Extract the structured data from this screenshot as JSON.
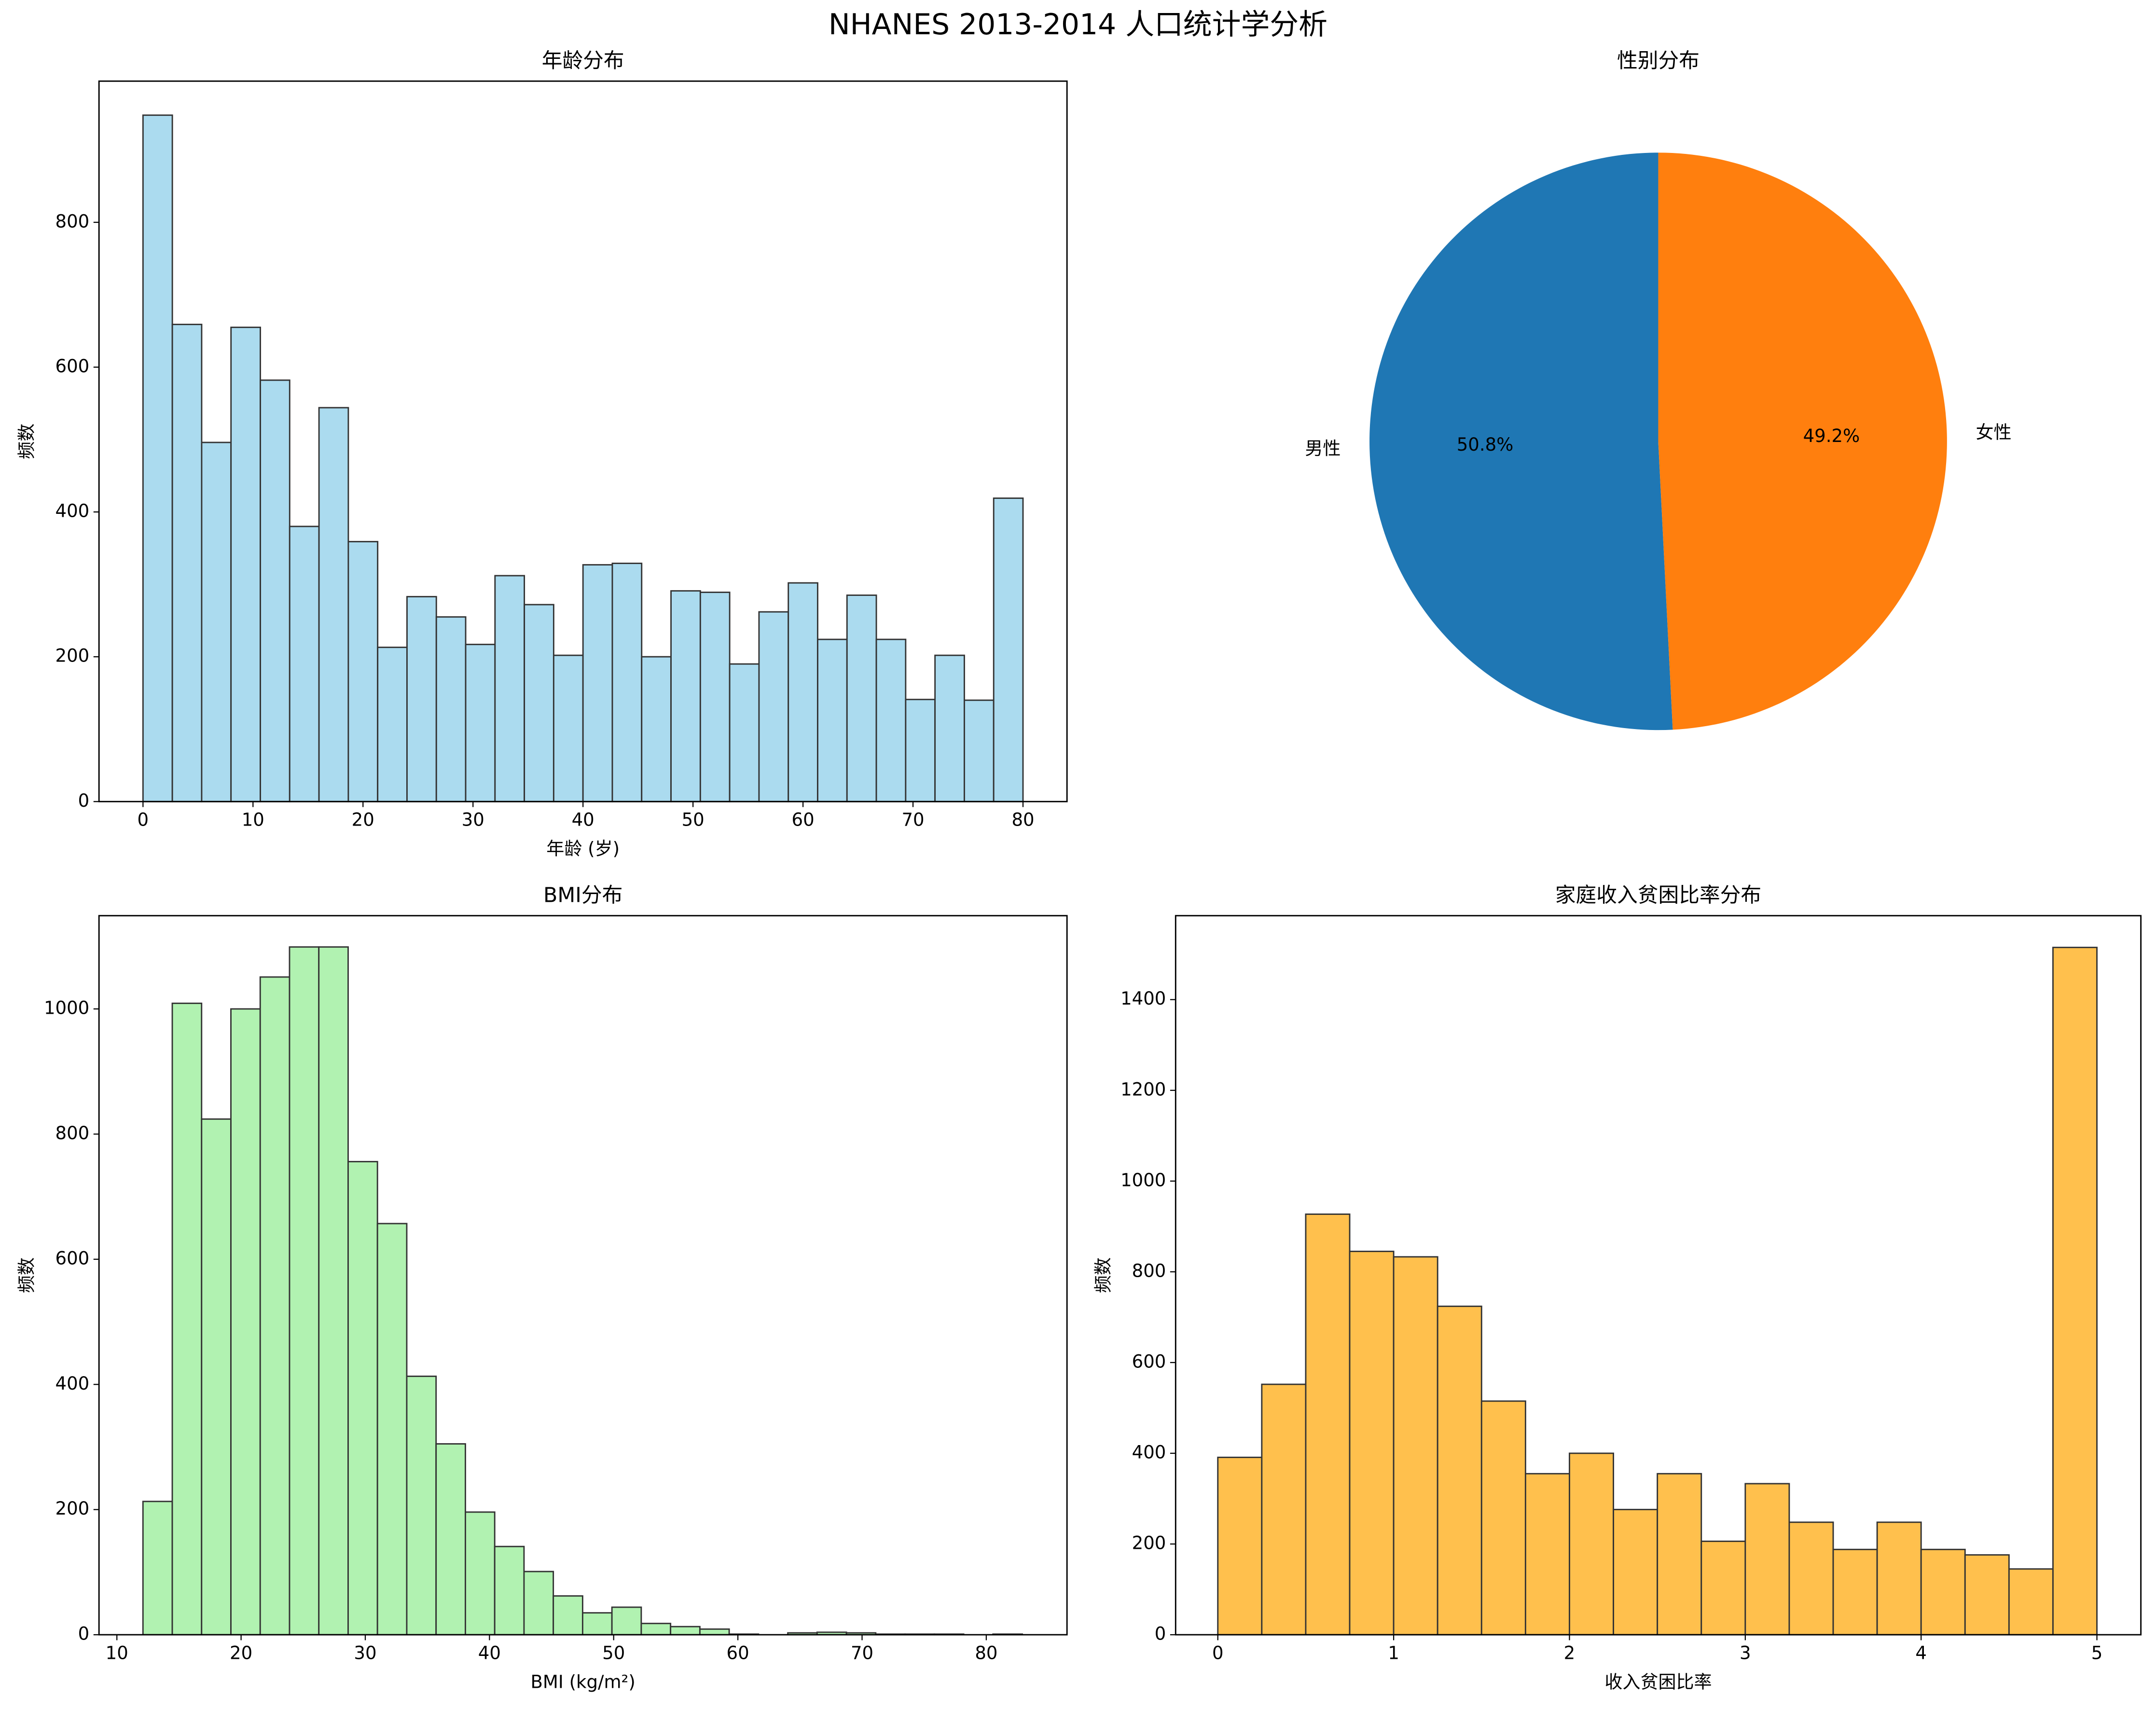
{
  "title": "NHANES 2013-2014 人口统计学分析",
  "chart_data": [
    {
      "type": "histogram",
      "title": "年龄分布",
      "x_label": "年龄 (岁)",
      "y_label": "频数",
      "bins": [
        0,
        2.667,
        5.333,
        8,
        10.667,
        13.333,
        16,
        18.667,
        21.333,
        24,
        26.667,
        29.333,
        32,
        34.667,
        37.333,
        40,
        42.667,
        45.333,
        48,
        50.667,
        53.333,
        56,
        58.667,
        61.333,
        64,
        66.667,
        69.333,
        72,
        74.667,
        77.333,
        80
      ],
      "values": [
        948,
        659,
        496,
        655,
        582,
        380,
        544,
        359,
        213,
        283,
        255,
        217,
        312,
        272,
        202,
        327,
        329,
        200,
        291,
        289,
        190,
        262,
        302,
        224,
        285,
        224,
        141,
        202,
        140,
        419
      ],
      "color": "#abdbef",
      "edgecolor": "#333333",
      "xlim": [
        -4,
        84
      ],
      "ylim": [
        0,
        995
      ],
      "xticks": [
        0,
        10,
        20,
        30,
        40,
        50,
        60,
        70,
        80
      ],
      "yticks": [
        0,
        200,
        400,
        600,
        800
      ]
    },
    {
      "type": "pie",
      "title": "性别分布",
      "categories": [
        "男性",
        "女性"
      ],
      "values": [
        50.8,
        49.2
      ],
      "value_labels": [
        "50.8%",
        "49.2%"
      ],
      "colors": [
        "#1f77b4",
        "#ff7f0e"
      ],
      "startangle": 90
    },
    {
      "type": "histogram",
      "title": "BMI分布",
      "x_label": "BMI (kg/m²)",
      "y_label": "频数",
      "bins": [
        12.1,
        14.46,
        16.82,
        19.18,
        21.54,
        23.9,
        26.26,
        28.62,
        30.98,
        33.34,
        35.7,
        38.06,
        40.42,
        42.78,
        45.14,
        47.5,
        49.86,
        52.22,
        54.58,
        56.94,
        59.3,
        61.66,
        64.02,
        66.38,
        68.74,
        71.1,
        73.46,
        75.82,
        78.18,
        80.54,
        82.9
      ],
      "values": [
        213,
        1009,
        824,
        1000,
        1051,
        1099,
        1099,
        756,
        657,
        413,
        305,
        196,
        141,
        101,
        62,
        35,
        44,
        18,
        13,
        9,
        1,
        0,
        3,
        4,
        3,
        1,
        1,
        1,
        0,
        1
      ],
      "color": "#b1f2b1",
      "edgecolor": "#333333",
      "xlim": [
        8.56,
        86.5
      ],
      "ylim": [
        0,
        1149
      ],
      "xticks": [
        10,
        20,
        30,
        40,
        50,
        60,
        70,
        80
      ],
      "yticks": [
        0,
        200,
        400,
        600,
        800,
        1000
      ]
    },
    {
      "type": "histogram",
      "title": "家庭收入贫困比率分布",
      "x_label": "收入贫困比率",
      "y_label": "频数",
      "bins": [
        0,
        0.25,
        0.5,
        0.75,
        1,
        1.25,
        1.5,
        1.75,
        2,
        2.25,
        2.5,
        2.75,
        3,
        3.25,
        3.5,
        3.75,
        4,
        4.25,
        4.5,
        4.75,
        5
      ],
      "values": [
        391,
        552,
        927,
        845,
        833,
        724,
        515,
        355,
        400,
        276,
        355,
        206,
        333,
        248,
        188,
        248,
        188,
        176,
        145,
        1515
      ],
      "color": "#ffc04d",
      "edgecolor": "#333333",
      "xlim": [
        -0.24,
        5.25
      ],
      "ylim": [
        0,
        1585
      ],
      "xticks": [
        0,
        1,
        2,
        3,
        4,
        5
      ],
      "yticks": [
        0,
        200,
        400,
        600,
        800,
        1000,
        1200,
        1400
      ]
    }
  ]
}
